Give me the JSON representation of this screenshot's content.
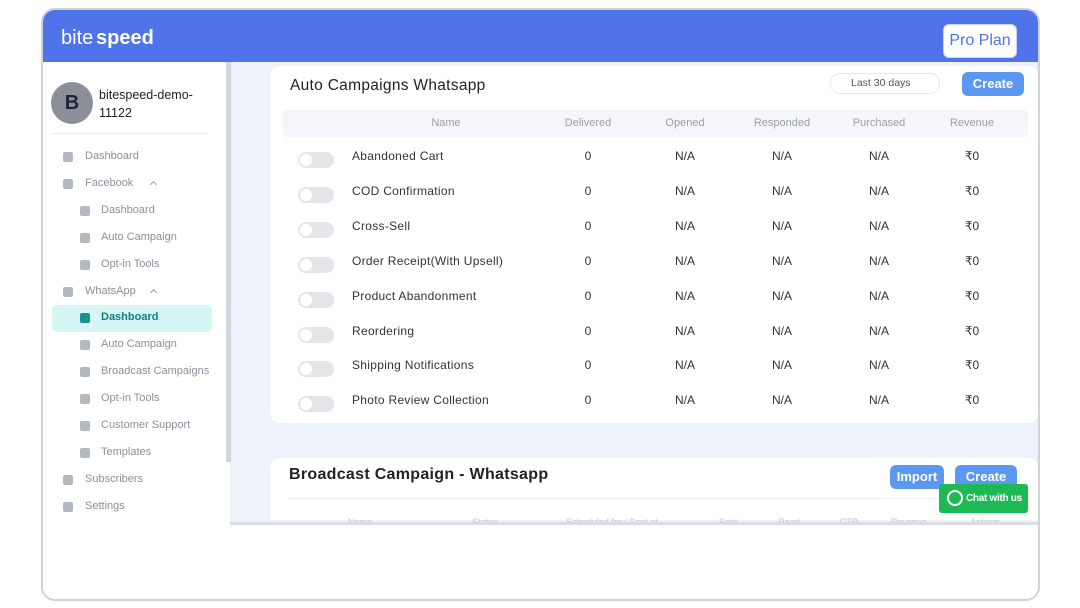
{
  "header": {
    "logo_light": "bite",
    "logo_bold": "speed",
    "plan": "Pro Plan"
  },
  "sidebar": {
    "avatar": "B",
    "account": "bitespeed-demo-11122",
    "nav": [
      {
        "label": "Dashboard",
        "level": 0
      },
      {
        "label": "Facebook",
        "level": 0,
        "expanded": true
      },
      {
        "label": "Dashboard",
        "level": 1
      },
      {
        "label": "Auto Campaign",
        "level": 1
      },
      {
        "label": "Opt-in Tools",
        "level": 1
      },
      {
        "label": "WhatsApp",
        "level": 0,
        "expanded": true
      },
      {
        "label": "Dashboard",
        "level": 1,
        "active": true
      },
      {
        "label": "Auto Campaign",
        "level": 1
      },
      {
        "label": "Broadcast Campaigns",
        "level": 1
      },
      {
        "label": "Opt-in Tools",
        "level": 1
      },
      {
        "label": "Customer Support",
        "level": 1
      },
      {
        "label": "Templates",
        "level": 1
      },
      {
        "label": "Subscribers",
        "level": 0
      },
      {
        "label": "Settings",
        "level": 0
      }
    ]
  },
  "auto_campaigns": {
    "title": "Auto Campaigns Whatsapp",
    "date_range": "Last 30 days",
    "create": "Create",
    "columns": [
      "Name",
      "Delivered",
      "Opened",
      "Responded",
      "Purchased",
      "Revenue"
    ],
    "rows": [
      [
        "Abandoned Cart",
        0,
        "N/A",
        "N/A",
        "N/A",
        "₹0"
      ],
      [
        "COD Confirmation",
        0,
        "N/A",
        "N/A",
        "N/A",
        "₹0"
      ],
      [
        "Cross-Sell",
        0,
        "N/A",
        "N/A",
        "N/A",
        "₹0"
      ],
      [
        "Order Receipt(With Upsell)",
        0,
        "N/A",
        "N/A",
        "N/A",
        "₹0"
      ],
      [
        "Product Abandonment",
        0,
        "N/A",
        "N/A",
        "N/A",
        "₹0"
      ],
      [
        "Reordering",
        0,
        "N/A",
        "N/A",
        "N/A",
        "₹0"
      ],
      [
        "Shipping Notifications",
        0,
        "N/A",
        "N/A",
        "N/A",
        "₹0"
      ],
      [
        "Photo Review Collection",
        0,
        "N/A",
        "N/A",
        "N/A",
        "₹0"
      ]
    ]
  },
  "broadcast": {
    "title": "Broadcast Campaign - Whatsapp",
    "import": "Import",
    "create": "Create",
    "columns": [
      "Name",
      "Status",
      "Scheduled for / Sent at",
      "Sent",
      "Read",
      "CTR",
      "Revenue",
      "Actions"
    ]
  },
  "chat_widget": "Chat with us"
}
